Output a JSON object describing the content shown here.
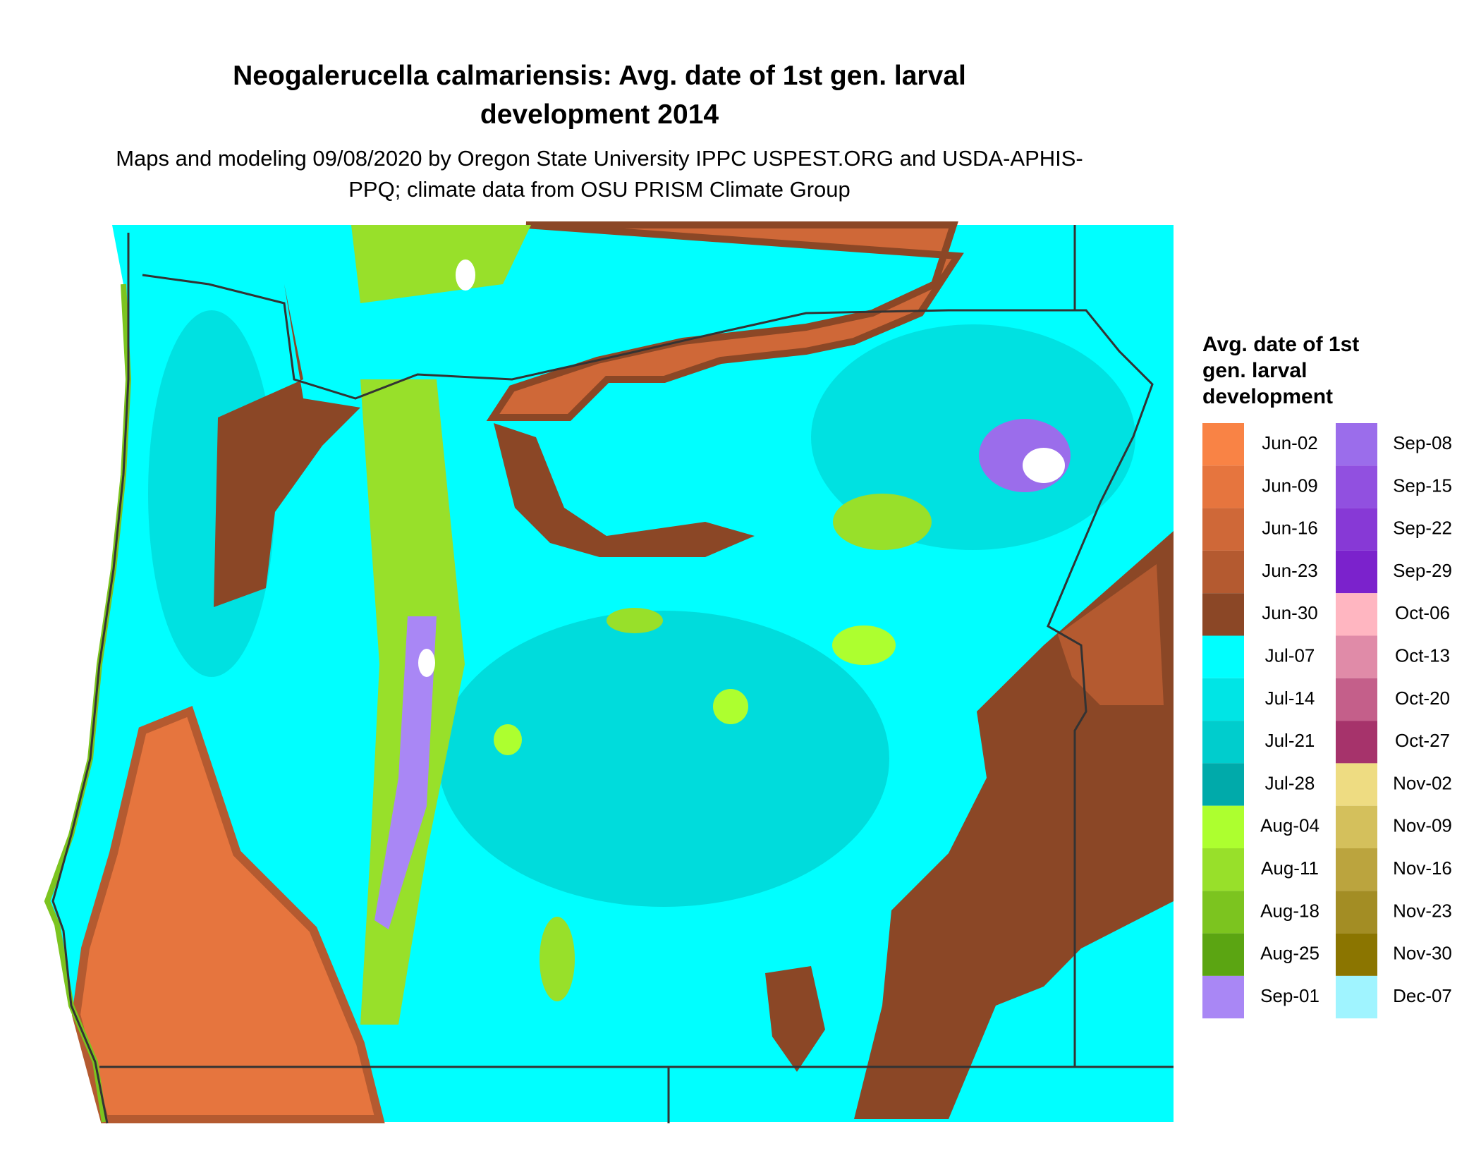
{
  "title": "Neogalerucella calmariensis: Avg. date of 1st gen. larval development 2014",
  "subtitle": "Maps and modeling 09/08/2020 by Oregon State University IPPC USPEST.ORG and USDA-APHIS-PPQ; climate data from OSU PRISM Climate Group",
  "legend": {
    "title": "Avg. date of 1st gen. larval development",
    "items": [
      {
        "label": "Jun-02",
        "color": "#F98345"
      },
      {
        "label": "Jun-09",
        "color": "#E6753E"
      },
      {
        "label": "Jun-16",
        "color": "#CF6838"
      },
      {
        "label": "Jun-23",
        "color": "#B45A30"
      },
      {
        "label": "Jun-30",
        "color": "#8B4726"
      },
      {
        "label": "Jul-07",
        "color": "#00FFFF"
      },
      {
        "label": "Jul-14",
        "color": "#00E5E5"
      },
      {
        "label": "Jul-21",
        "color": "#00CDCD"
      },
      {
        "label": "Jul-28",
        "color": "#00AAAA"
      },
      {
        "label": "Aug-04",
        "color": "#ADFF2F"
      },
      {
        "label": "Aug-11",
        "color": "#98E02A"
      },
      {
        "label": "Aug-18",
        "color": "#7CC41F"
      },
      {
        "label": "Aug-25",
        "color": "#5BA512"
      },
      {
        "label": "Sep-01",
        "color": "#A987F5"
      },
      {
        "label": "Sep-08",
        "color": "#9B6DEB"
      },
      {
        "label": "Sep-15",
        "color": "#9150E0"
      },
      {
        "label": "Sep-22",
        "color": "#8739D6"
      },
      {
        "label": "Sep-29",
        "color": "#7B22CC"
      },
      {
        "label": "Oct-06",
        "color": "#FFB6C1"
      },
      {
        "label": "Oct-13",
        "color": "#E08BA8"
      },
      {
        "label": "Oct-20",
        "color": "#C45F8A"
      },
      {
        "label": "Oct-27",
        "color": "#A6336B"
      },
      {
        "label": "Nov-02",
        "color": "#EEDC82"
      },
      {
        "label": "Nov-09",
        "color": "#D4C05C"
      },
      {
        "label": "Nov-16",
        "color": "#BBA43E"
      },
      {
        "label": "Nov-23",
        "color": "#A38D24"
      },
      {
        "label": "Nov-30",
        "color": "#8B7500"
      },
      {
        "label": "Dec-07",
        "color": "#A0F4FF"
      }
    ]
  }
}
